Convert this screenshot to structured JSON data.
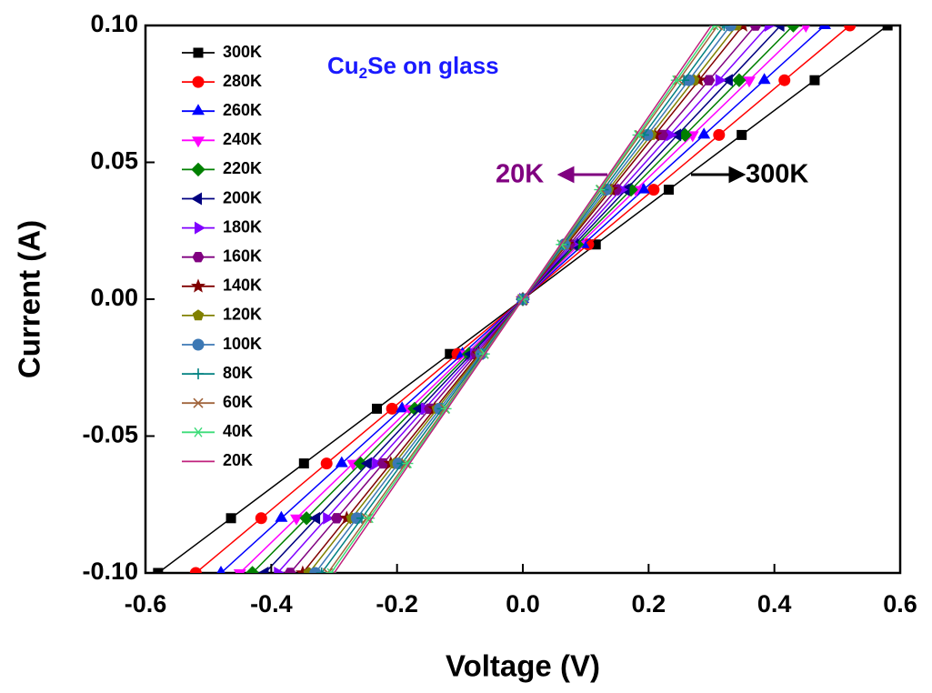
{
  "chart_data": {
    "type": "line",
    "title_parts": [
      "Cu",
      "2",
      "Se on glass"
    ],
    "x_label": "Voltage (V)",
    "y_label": "Current (A)",
    "annotations": [
      {
        "text": "20K",
        "color": "#800080"
      },
      {
        "text": "300K",
        "color": "#000000"
      }
    ],
    "xlim": [
      -0.6,
      0.6
    ],
    "ylim": [
      -0.1,
      0.1
    ],
    "xticks": [
      -0.6,
      -0.4,
      -0.2,
      {
        "value": 0,
        "label": "0.0"
      },
      0.2,
      0.4,
      0.6
    ],
    "yticks": [
      {
        "value": -0.1,
        "label": "-0.10"
      },
      {
        "value": -0.05,
        "label": "-0.05"
      },
      {
        "value": 0,
        "label": "0.00"
      },
      {
        "value": 0.05,
        "label": "0.05"
      },
      {
        "value": 0.1,
        "label": "0.10"
      }
    ],
    "series": [
      {
        "name": "300K",
        "color": "#000000",
        "marker": "square",
        "x": [
          -0.58,
          -0.464,
          -0.348,
          -0.232,
          -0.116,
          0,
          0.116,
          0.232,
          0.348,
          0.464,
          0.58
        ],
        "values": [
          -0.1,
          -0.08,
          -0.06,
          -0.04,
          -0.02,
          0,
          0.02,
          0.04,
          0.06,
          0.08,
          0.1
        ]
      },
      {
        "name": "280K",
        "color": "#ff0000",
        "marker": "circle",
        "x": [
          -0.52,
          -0.416,
          -0.312,
          -0.208,
          -0.104,
          0,
          0.104,
          0.208,
          0.312,
          0.416,
          0.52
        ],
        "values": [
          -0.1,
          -0.08,
          -0.06,
          -0.04,
          -0.02,
          0,
          0.02,
          0.04,
          0.06,
          0.08,
          0.1
        ]
      },
      {
        "name": "260K",
        "color": "#0000ff",
        "marker": "tri-up",
        "x": [
          -0.48,
          -0.384,
          -0.288,
          -0.192,
          -0.096,
          0,
          0.096,
          0.192,
          0.288,
          0.384,
          0.48
        ],
        "values": [
          -0.1,
          -0.08,
          -0.06,
          -0.04,
          -0.02,
          0,
          0.02,
          0.04,
          0.06,
          0.08,
          0.1
        ]
      },
      {
        "name": "240K",
        "color": "#ff00ff",
        "marker": "tri-down",
        "x": [
          -0.45,
          -0.36,
          -0.27,
          -0.18,
          -0.09,
          0,
          0.09,
          0.18,
          0.27,
          0.36,
          0.45
        ],
        "values": [
          -0.1,
          -0.08,
          -0.06,
          -0.04,
          -0.02,
          0,
          0.02,
          0.04,
          0.06,
          0.08,
          0.1
        ]
      },
      {
        "name": "220K",
        "color": "#008000",
        "marker": "diamond",
        "x": [
          -0.43,
          -0.344,
          -0.258,
          -0.172,
          -0.086,
          0,
          0.086,
          0.172,
          0.258,
          0.344,
          0.43
        ],
        "values": [
          -0.1,
          -0.08,
          -0.06,
          -0.04,
          -0.02,
          0,
          0.02,
          0.04,
          0.06,
          0.08,
          0.1
        ]
      },
      {
        "name": "200K",
        "color": "#000080",
        "marker": "tri-left",
        "x": [
          -0.41,
          -0.328,
          -0.246,
          -0.164,
          -0.082,
          0,
          0.082,
          0.164,
          0.246,
          0.328,
          0.41
        ],
        "values": [
          -0.1,
          -0.08,
          -0.06,
          -0.04,
          -0.02,
          0,
          0.02,
          0.04,
          0.06,
          0.08,
          0.1
        ]
      },
      {
        "name": "180K",
        "color": "#8000ff",
        "marker": "tri-right",
        "x": [
          -0.39,
          -0.312,
          -0.234,
          -0.156,
          -0.078,
          0,
          0.078,
          0.156,
          0.234,
          0.312,
          0.39
        ],
        "values": [
          -0.1,
          -0.08,
          -0.06,
          -0.04,
          -0.02,
          0,
          0.02,
          0.04,
          0.06,
          0.08,
          0.1
        ]
      },
      {
        "name": "160K",
        "color": "#800080",
        "marker": "hexagon",
        "x": [
          -0.37,
          -0.296,
          -0.222,
          -0.148,
          -0.074,
          0,
          0.074,
          0.148,
          0.222,
          0.296,
          0.37
        ],
        "values": [
          -0.1,
          -0.08,
          -0.06,
          -0.04,
          -0.02,
          0,
          0.02,
          0.04,
          0.06,
          0.08,
          0.1
        ]
      },
      {
        "name": "140K",
        "color": "#800000",
        "marker": "star",
        "x": [
          -0.35,
          -0.28,
          -0.21,
          -0.14,
          -0.07,
          0,
          0.07,
          0.14,
          0.21,
          0.28,
          0.35
        ],
        "values": [
          -0.1,
          -0.08,
          -0.06,
          -0.04,
          -0.02,
          0,
          0.02,
          0.04,
          0.06,
          0.08,
          0.1
        ]
      },
      {
        "name": "120K",
        "color": "#808000",
        "marker": "pentagon",
        "x": [
          -0.34,
          -0.272,
          -0.204,
          -0.136,
          -0.068,
          0,
          0.068,
          0.136,
          0.204,
          0.272,
          0.34
        ],
        "values": [
          -0.1,
          -0.08,
          -0.06,
          -0.04,
          -0.02,
          0,
          0.02,
          0.04,
          0.06,
          0.08,
          0.1
        ]
      },
      {
        "name": "100K",
        "color": "#3c78b4",
        "marker": "circle",
        "x": [
          -0.33,
          -0.264,
          -0.198,
          -0.132,
          -0.066,
          0,
          0.066,
          0.132,
          0.198,
          0.264,
          0.33
        ],
        "values": [
          -0.1,
          -0.08,
          -0.06,
          -0.04,
          -0.02,
          0,
          0.02,
          0.04,
          0.06,
          0.08,
          0.1
        ]
      },
      {
        "name": "80K",
        "color": "#008080",
        "marker": "plus",
        "x": [
          -0.32,
          -0.256,
          -0.192,
          -0.128,
          -0.064,
          0,
          0.064,
          0.128,
          0.192,
          0.256,
          0.32
        ],
        "values": [
          -0.1,
          -0.08,
          -0.06,
          -0.04,
          -0.02,
          0,
          0.02,
          0.04,
          0.06,
          0.08,
          0.1
        ]
      },
      {
        "name": "60K",
        "color": "#a0643c",
        "marker": "cross",
        "x": [
          -0.31,
          -0.248,
          -0.186,
          -0.124,
          -0.062,
          0,
          0.062,
          0.124,
          0.186,
          0.248,
          0.31
        ],
        "values": [
          -0.1,
          -0.08,
          -0.06,
          -0.04,
          -0.02,
          0,
          0.02,
          0.04,
          0.06,
          0.08,
          0.1
        ]
      },
      {
        "name": "40K",
        "color": "#3cdc78",
        "marker": "asterisk",
        "x": [
          -0.305,
          -0.244,
          -0.183,
          -0.122,
          -0.061,
          0,
          0.061,
          0.122,
          0.183,
          0.244,
          0.305
        ],
        "values": [
          -0.1,
          -0.08,
          -0.06,
          -0.04,
          -0.02,
          0,
          0.02,
          0.04,
          0.06,
          0.08,
          0.1
        ]
      },
      {
        "name": "20K",
        "color": "#c0207c",
        "marker": "none",
        "x": [
          -0.3,
          -0.24,
          -0.18,
          -0.12,
          -0.06,
          0,
          0.06,
          0.12,
          0.18,
          0.24,
          0.3
        ],
        "values": [
          -0.1,
          -0.08,
          -0.06,
          -0.04,
          -0.02,
          0,
          0.02,
          0.04,
          0.06,
          0.08,
          0.1
        ]
      }
    ]
  }
}
